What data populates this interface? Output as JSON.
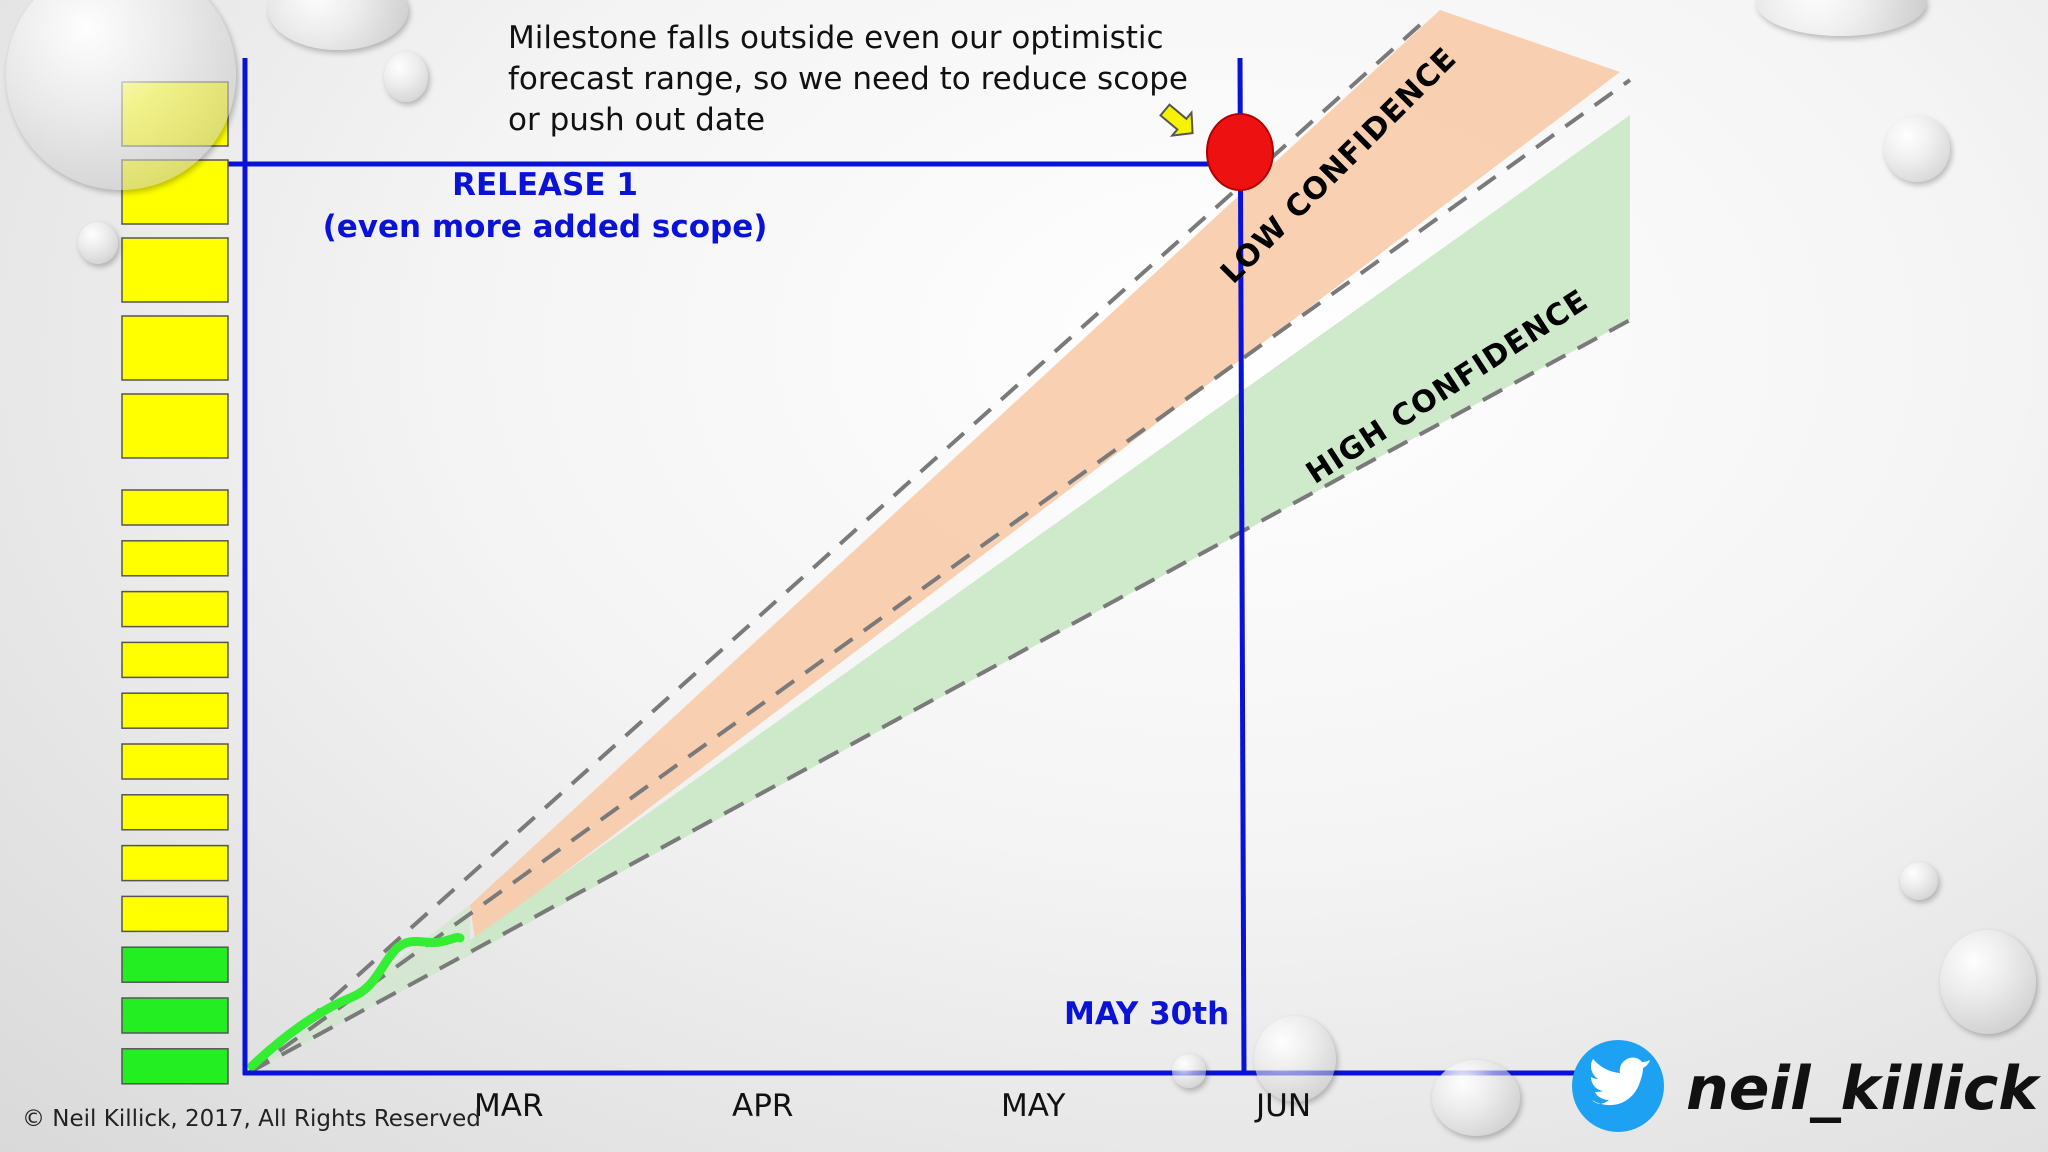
{
  "annotation": "Milestone falls outside even our optimistic forecast range, so we need to reduce scope or push out date",
  "release_label_line1": "RELEASE 1",
  "release_label_line2": "(even more added scope)",
  "milestone_date_label": "MAY 30th",
  "low_confidence_label": "LOW CONFIDENCE",
  "high_confidence_label": "HIGH CONFIDENCE",
  "copyright": "© Neil Killick, 2017, All Rights Reserved",
  "twitter_handle": "neil_killick",
  "icons": [
    "twitter-bird-icon",
    "copyright-icon",
    "arrow-icon"
  ],
  "colors": {
    "axis": "#0a12d8",
    "milestone_marker": "#ee1111",
    "actual_progress": "#33ee33",
    "low_confidence_band": "#f9c8a4",
    "high_confidence_band": "#c9e8c4",
    "backlog_todo": "#ffff00",
    "backlog_done": "#22ee22",
    "twitter_blue": "#1da1f2"
  },
  "chart_data": {
    "type": "line",
    "x_ticks": [
      "MAR",
      "APR",
      "MAY",
      "JUN"
    ],
    "backlog_items": {
      "total": 17,
      "done": 3,
      "todo": 14
    },
    "release_scope_line": "RELEASE 1",
    "milestone_date": "MAY 30th",
    "bands": [
      {
        "name": "LOW CONFIDENCE",
        "color": "#f9c8a4"
      },
      {
        "name": "HIGH CONFIDENCE",
        "color": "#c9e8c4"
      }
    ],
    "grid": false
  }
}
